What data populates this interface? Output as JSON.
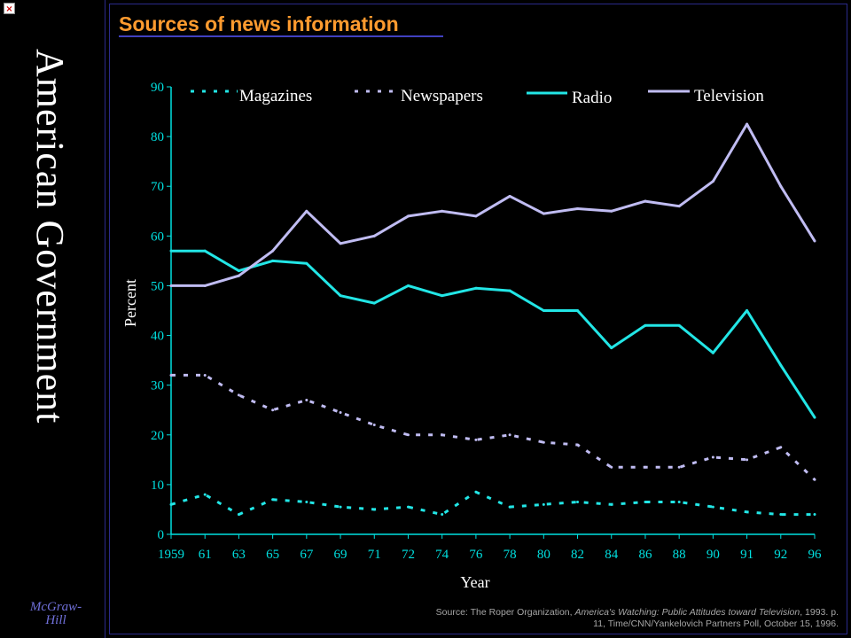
{
  "window": {
    "close_glyph": "×",
    "close_icon": "close-icon"
  },
  "sidebar": {
    "title": "American Government",
    "publisher_line1": "McGraw-",
    "publisher_line2": "Hill"
  },
  "colors": {
    "title": "#ff9b2f",
    "axis": "#00e0e0",
    "radio": "#22e6e6",
    "magazines": "#22e6e6",
    "television": "#c0bcf2",
    "newspapers": "#c0bcf2",
    "legend_text": "#ffffff"
  },
  "source": {
    "prefix": "Source: The Roper Organization, ",
    "title_italic": "America's Watching: Public Attitudes toward Television",
    "suffix": ", 1993. p. 11, Time/CNN/Yankelovich Partners Poll, October 15, 1996."
  },
  "chart_data": {
    "type": "line",
    "title": "Sources of news information",
    "xlabel": "Year",
    "ylabel": "Percent",
    "ylim": [
      0,
      90
    ],
    "yticks": [
      0,
      10,
      20,
      30,
      40,
      50,
      60,
      70,
      80,
      90
    ],
    "grid": false,
    "legend_position": "top",
    "categories": [
      "1959",
      "61",
      "63",
      "65",
      "67",
      "69",
      "71",
      "72",
      "74",
      "76",
      "78",
      "80",
      "82",
      "84",
      "86",
      "88",
      "90",
      "91",
      "92",
      "96"
    ],
    "series": [
      {
        "name": "Magazines",
        "style": "dashed",
        "color": "#22e6e6",
        "values": [
          6,
          8,
          4,
          7,
          6.5,
          5.5,
          5,
          5.5,
          4,
          8.5,
          5.5,
          6,
          6.5,
          6,
          6.5,
          6.5,
          5.5,
          4.5,
          4,
          4
        ]
      },
      {
        "name": "Newspapers",
        "style": "dashed",
        "color": "#c0bcf2",
        "values": [
          32,
          32,
          28,
          25,
          27,
          24.5,
          22,
          20,
          20,
          19,
          20,
          18.5,
          18,
          13.5,
          13.5,
          13.5,
          15.5,
          15,
          17.5,
          11
        ]
      },
      {
        "name": "Radio",
        "style": "solid",
        "color": "#22e6e6",
        "values": [
          57,
          57,
          53,
          55,
          54.5,
          48,
          46.5,
          50,
          48,
          49.5,
          49,
          45,
          45,
          37.5,
          42,
          42,
          36.5,
          45,
          34,
          23.5
        ]
      },
      {
        "name": "Television",
        "style": "solid",
        "color": "#c0bcf2",
        "values": [
          50,
          50,
          52,
          57,
          65,
          58.5,
          60,
          64,
          65,
          64,
          68,
          64.5,
          65.5,
          65,
          67,
          66,
          71,
          82.5,
          70,
          59
        ]
      }
    ]
  }
}
